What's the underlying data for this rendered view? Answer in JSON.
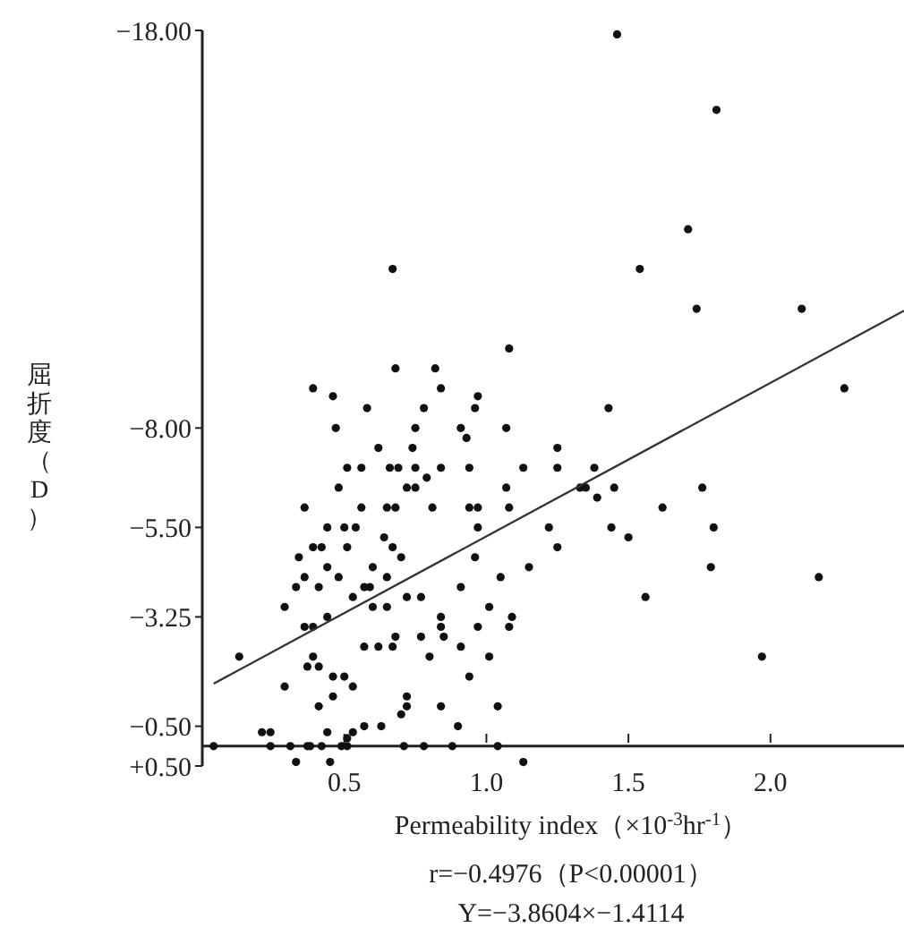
{
  "chart_data": {
    "type": "scatter",
    "xlabel": "Permeability index（×10$^{-3}$hr$^{-1}$）",
    "ylabel": "屈折度（D）",
    "annotations": [
      "r=−0.4976（P<0.00001）",
      "Y=−3.8604×−1.4114"
    ],
    "xlim": [
      0,
      2.47
    ],
    "ylim": [
      0.5,
      -18
    ],
    "xticks": [
      0.5,
      {
        "value": 1,
        "label": "1.0"
      },
      1.5,
      {
        "value": 2,
        "label": "2.0"
      }
    ],
    "yticks": [
      {
        "value": -18,
        "label": "−18.00"
      },
      {
        "value": -8,
        "label": "−8.00"
      },
      {
        "value": -5.5,
        "label": "−5.50"
      },
      {
        "value": -3.25,
        "label": "−3.25"
      },
      {
        "value": -0.5,
        "label": "−0.50"
      },
      {
        "value": 0.5,
        "label": "+0.50"
      }
    ],
    "grid": false,
    "series": [
      {
        "type": "scatter",
        "marker": "circle",
        "color": "#111111",
        "x": [
          0.67,
          0.68,
          0.82,
          0.39,
          0.84,
          0.46,
          0.58,
          0.78,
          0.47,
          0.75,
          0.91,
          0.62,
          0.74,
          1.46,
          1.81,
          1.71,
          1.54,
          1.74,
          2.11,
          1.08,
          0.97,
          0.96,
          1.43,
          1.07,
          0.93,
          1.25,
          2.26,
          0.48,
          0.51,
          0.56,
          0.66,
          0.69,
          0.84,
          0.72,
          0.75,
          0.75,
          0.79,
          0.81,
          0.36,
          0.56,
          0.65,
          0.68,
          0.44,
          0.5,
          0.54,
          0.64,
          0.67,
          0.7,
          0.51,
          0.39,
          0.42,
          0.34,
          0.36,
          0.44,
          0.33,
          0.41,
          0.48,
          0.53,
          0.57,
          0.59,
          0.6,
          0.65,
          0.65,
          0.6,
          0.72,
          0.77,
          0.29,
          0.36,
          0.39,
          0.44,
          0.84,
          0.57,
          0.62,
          0.67,
          0.68,
          0.77,
          0.84,
          0.85,
          0.91,
          0.91,
          0.13,
          0.39,
          0.37,
          0.41,
          0.8,
          0.46,
          0.5,
          0.29,
          0.53,
          0.46,
          0.41,
          0.72,
          0.72,
          0.7,
          0.84,
          0.57,
          0.63,
          0.9,
          0.44,
          0.21,
          0.24,
          0.53,
          0.51,
          0.04,
          0.24,
          0.31,
          0.37,
          0.38,
          0.42,
          0.49,
          0.51,
          0.71,
          0.78,
          0.88,
          1.04,
          0.33,
          0.45,
          1.13,
          0.94,
          1.13,
          1.25,
          1.38,
          1.07,
          1.33,
          1.35,
          1.45,
          1.76,
          0.94,
          0.97,
          1.08,
          1.39,
          1.62,
          0.97,
          1.22,
          1.44,
          1.8,
          1.25,
          1.5,
          0.96,
          1.15,
          1.79,
          2.17,
          1.05,
          1.56,
          1.01,
          1.09,
          0.97,
          1.08,
          1.01,
          0.94,
          1.97,
          1.04
        ],
        "values": [
          -12,
          -9.5,
          -9.5,
          -9,
          -9,
          -8.8,
          -8.5,
          -8.5,
          -8,
          -8,
          -8,
          -7.5,
          -7.5,
          -17.9,
          -16,
          -13,
          -12,
          -11,
          -11,
          -10,
          -8.8,
          -8.5,
          -8.5,
          -8,
          -7.75,
          -7.5,
          -9,
          -6.5,
          -7,
          -7,
          -7,
          -7,
          -7,
          -6.5,
          -6.5,
          -7,
          -6.75,
          -6,
          -6,
          -6,
          -6,
          -6,
          -5.5,
          -5.5,
          -5.5,
          -5.25,
          -5,
          -4.75,
          -5,
          -5,
          -5,
          -4.75,
          -4.25,
          -4.5,
          -4,
          -4,
          -4.25,
          -3.75,
          -4,
          -4,
          -4.5,
          -4.25,
          -3.5,
          -3.5,
          -3.75,
          -3.75,
          -3.5,
          -3,
          -3,
          -3.25,
          -3.25,
          -2.5,
          -2.5,
          -2.5,
          -2.75,
          -2.75,
          -3,
          -2.75,
          -4,
          -2.5,
          -2.25,
          -2.25,
          -2,
          -2,
          -2.25,
          -1.75,
          -1.75,
          -1.5,
          -1.5,
          -1.25,
          -1,
          -1.25,
          -1,
          -0.8,
          -1,
          -0.5,
          -0.5,
          -0.5,
          -0.35,
          -0.35,
          -0.35,
          -0.35,
          -0.2,
          0,
          0,
          0,
          0,
          0,
          0,
          0,
          0,
          0,
          0,
          0,
          0,
          0.4,
          0.4,
          0.4,
          -7,
          -7,
          -7,
          -7,
          -6.5,
          -6.5,
          -6.5,
          -6.5,
          -6.5,
          -6,
          -6,
          -6,
          -6.25,
          -6,
          -5.5,
          -5.5,
          -5.5,
          -5.5,
          -5,
          -5.25,
          -4.75,
          -4.5,
          -4.5,
          -4.25,
          -4.25,
          -3.75,
          -3.5,
          -3.25,
          -3,
          -3,
          -2.25,
          -1.75,
          -2.25,
          -1
        ]
      },
      {
        "type": "line",
        "marker": "none",
        "line_style": "solid",
        "color": "#333333",
        "x": [
          0.04,
          2.47
        ],
        "values": [
          -1.57,
          -10.95
        ]
      }
    ]
  }
}
